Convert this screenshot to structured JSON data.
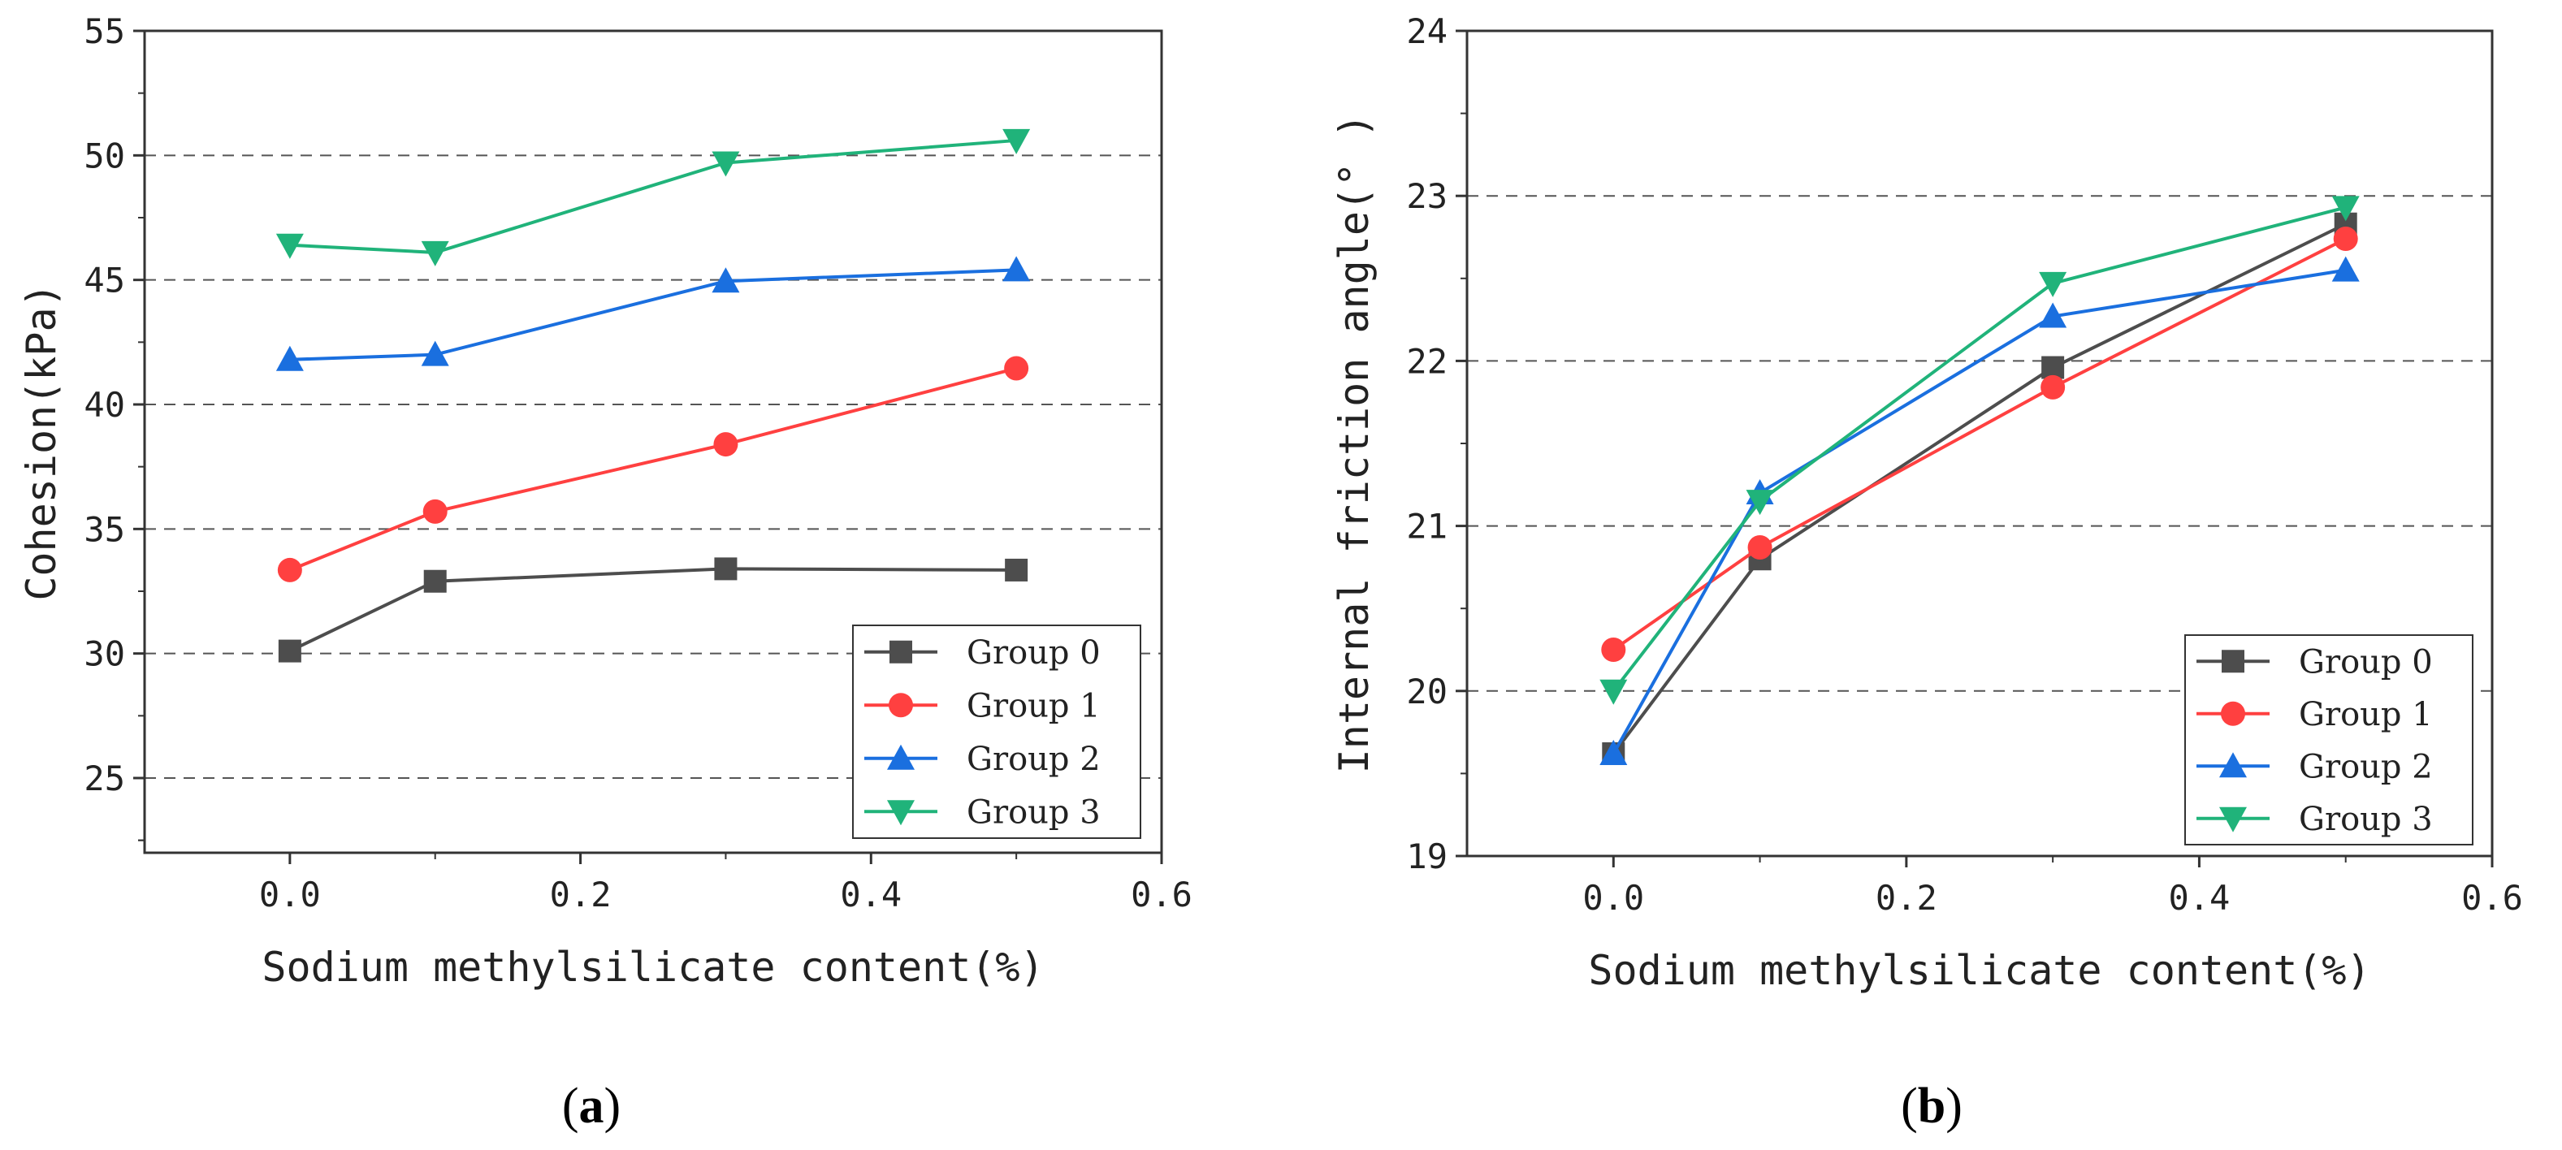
{
  "chart_data": [
    {
      "type": "line",
      "panel_label": "a",
      "xlabel": "Sodium methylsilicate content(%)",
      "ylabel": "Cohesion(kPa)",
      "xlim": [
        -0.1,
        0.6
      ],
      "ylim": [
        22,
        55
      ],
      "xticks": [
        "0.0",
        "0.2",
        "0.4",
        "0.6"
      ],
      "xtick_values": [
        0.0,
        0.2,
        0.4,
        0.6
      ],
      "yticks": [
        "25",
        "30",
        "35",
        "40",
        "45",
        "50",
        "55"
      ],
      "ytick_values": [
        25,
        30,
        35,
        40,
        45,
        50,
        55
      ],
      "grid": "horizontal dashed",
      "legend_position": "bottom-right",
      "x": [
        0.0,
        0.1,
        0.3,
        0.5
      ],
      "series": [
        {
          "name": "Group 0",
          "color": "#4d4d4d",
          "marker": "square",
          "values": [
            30.1,
            32.9,
            33.4,
            33.35
          ]
        },
        {
          "name": "Group 1",
          "color": "#ff4040",
          "marker": "circle",
          "values": [
            33.35,
            35.7,
            38.4,
            41.45
          ]
        },
        {
          "name": "Group 2",
          "color": "#1a6fdf",
          "marker": "triangle-up",
          "values": [
            41.8,
            42.0,
            44.95,
            45.4
          ]
        },
        {
          "name": "Group 3",
          "color": "#20b37a",
          "marker": "triangle-down",
          "values": [
            46.4,
            46.1,
            49.7,
            50.6
          ]
        }
      ]
    },
    {
      "type": "line",
      "panel_label": "b",
      "xlabel": "Sodium methylsilicate content(%)",
      "ylabel": "Internal friction angle(° )",
      "xlim": [
        -0.1,
        0.6
      ],
      "ylim": [
        19,
        24
      ],
      "xticks": [
        "0.0",
        "0.2",
        "0.4",
        "0.6"
      ],
      "xtick_values": [
        0.0,
        0.2,
        0.4,
        0.6
      ],
      "yticks": [
        "19",
        "20",
        "21",
        "22",
        "23",
        "24"
      ],
      "ytick_values": [
        19,
        20,
        21,
        22,
        23,
        24
      ],
      "grid": "horizontal dashed",
      "legend_position": "bottom-right",
      "x": [
        0.0,
        0.1,
        0.3,
        0.5
      ],
      "series": [
        {
          "name": "Group 0",
          "color": "#4d4d4d",
          "marker": "square",
          "values": [
            19.62,
            20.8,
            21.96,
            22.83
          ]
        },
        {
          "name": "Group 1",
          "color": "#ff4040",
          "marker": "circle",
          "values": [
            20.25,
            20.87,
            21.84,
            22.74
          ]
        },
        {
          "name": "Group 2",
          "color": "#1a6fdf",
          "marker": "triangle-up",
          "values": [
            19.62,
            21.2,
            22.27,
            22.55
          ]
        },
        {
          "name": "Group 3",
          "color": "#20b37a",
          "marker": "triangle-down",
          "values": [
            20.0,
            21.15,
            22.47,
            22.93
          ]
        }
      ]
    }
  ]
}
